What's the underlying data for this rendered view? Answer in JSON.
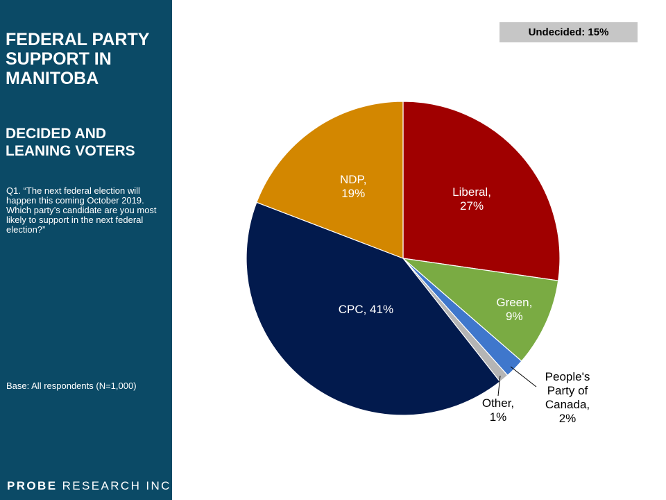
{
  "sidebar": {
    "title": "FEDERAL PARTY SUPPORT IN MANITOBA",
    "subtitle": "DECIDED AND LEANING VOTERS",
    "question": "Q1. “The next federal election will happen this coming October 2019. Which party’s candidate are you most likely to support in the next federal election?”",
    "base": "Base:  All respondents (N=1,000)",
    "brand": {
      "first": "PR",
      "o": "O",
      "be": "BE",
      "rest": " RESEARCH INC."
    }
  },
  "badge": {
    "text": "Undecided: 15%"
  },
  "chart_data": {
    "type": "pie",
    "title": "",
    "slices": [
      {
        "name": "Liberal",
        "value": 27,
        "color": "#a00000",
        "label": [
          "Liberal,",
          "27%"
        ],
        "label_color": "#ffffff"
      },
      {
        "name": "Green",
        "value": 9,
        "color": "#7aab43",
        "label": [
          "Green,",
          "9%"
        ],
        "label_color": "#ffffff"
      },
      {
        "name": "People's Party of Canada",
        "value": 2,
        "color": "#3f77cc",
        "label": [
          "People's",
          "Party of",
          "Canada,",
          "2%"
        ],
        "label_color": "#000000"
      },
      {
        "name": "Other",
        "value": 1,
        "color": "#b5b5b5",
        "label": [
          "Other,",
          "1%"
        ],
        "label_color": "#000000"
      },
      {
        "name": "CPC",
        "value": 41,
        "color": "#021a4d",
        "label": [
          "CPC, 41%"
        ],
        "label_color": "#ffffff"
      },
      {
        "name": "NDP",
        "value": 19,
        "color": "#d38700",
        "label": [
          "NDP,",
          "19%"
        ],
        "label_color": "#ffffff"
      }
    ]
  }
}
